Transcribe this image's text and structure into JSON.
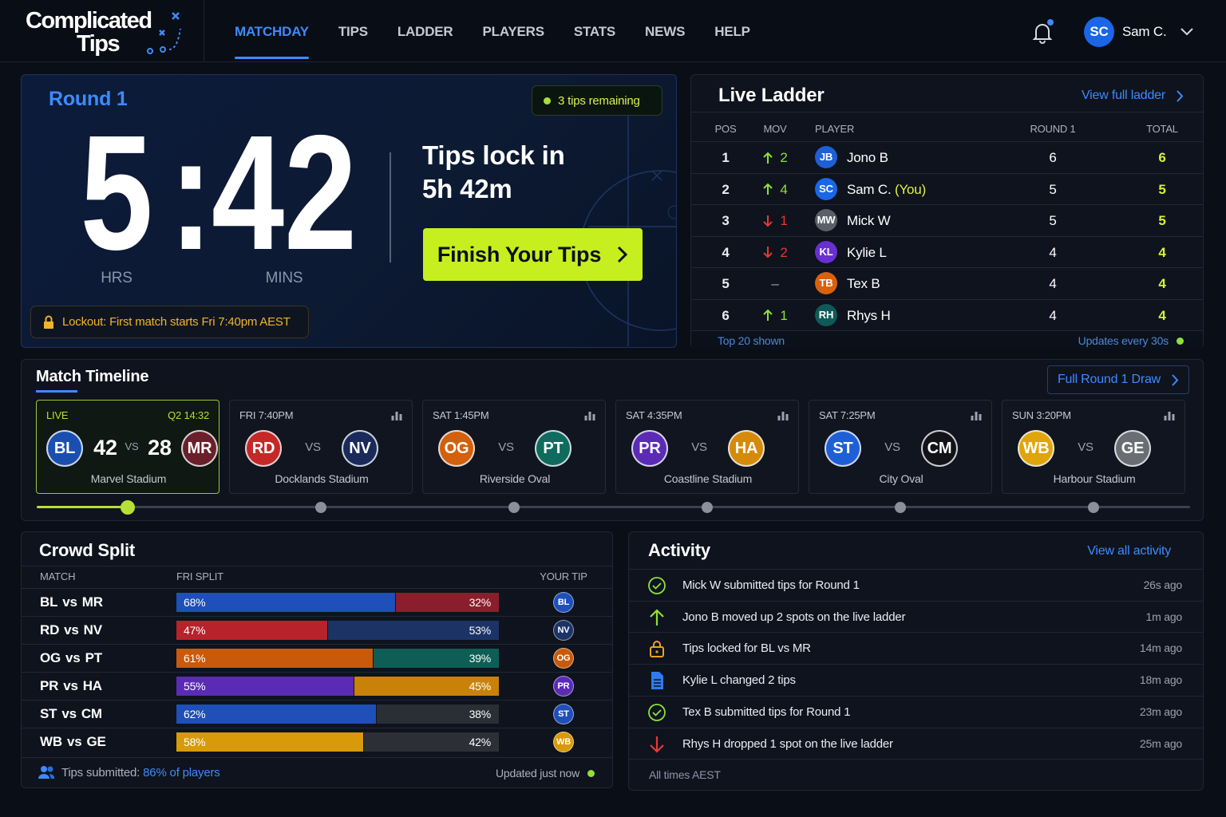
{
  "nav": {
    "logo_line1": "Complicated",
    "logo_line2": "Tips",
    "links": [
      "MATCHDAY",
      "TIPS",
      "LADDER",
      "PLAYERS",
      "STATS",
      "NEWS",
      "HELP"
    ],
    "active_link": 0,
    "user_initials": "SC",
    "user_name": "Sam C."
  },
  "countdown": {
    "round": "Round 1",
    "tips_remaining": "3 tips remaining",
    "hours": 5,
    "separator": ":",
    "minutes": 42,
    "hours_label": "HRS",
    "minutes_label": "MINS",
    "lock_title": "Tips lock in",
    "lock_time": "5h 42m",
    "cta": "Finish Your Tips",
    "lockout": "Lockout: First match starts Fri 7:40pm AEST"
  },
  "ladder": {
    "title": "Live Ladder",
    "view_link": "View full ladder",
    "columns": [
      "POS",
      "MOV",
      "PLAYER",
      "ROUND 1",
      "TOTAL"
    ],
    "rows": [
      {
        "pos": 1,
        "dir": "up",
        "mov": 2,
        "initials": "JB",
        "color": "#1f5fd6",
        "name": "Jono B",
        "round": 6,
        "total": 6
      },
      {
        "pos": 2,
        "dir": "up",
        "mov": 4,
        "initials": "SC",
        "color": "#1a66e6",
        "name": "Sam C.",
        "you": "(You)",
        "round": 5,
        "total": 5
      },
      {
        "pos": 3,
        "dir": "down",
        "mov": 1,
        "initials": "MW",
        "color": "#5a5f68",
        "name": "Mick W",
        "round": 5,
        "total": 5
      },
      {
        "pos": 4,
        "dir": "down",
        "mov": 2,
        "initials": "KL",
        "color": "#6a2fd0",
        "name": "Kylie L",
        "round": 4,
        "total": 4
      },
      {
        "pos": 5,
        "dir": "flat",
        "mov": "–",
        "initials": "TB",
        "color": "#d8610c",
        "name": "Tex B",
        "round": 4,
        "total": 4
      },
      {
        "pos": 6,
        "dir": "up",
        "mov": 1,
        "initials": "RH",
        "color": "#0f5a58",
        "name": "Rhys H",
        "round": 4,
        "total": 4
      }
    ],
    "footer_left": "Top 20 shown",
    "footer_right": "Updates every 30s"
  },
  "timeline": {
    "title": "Match Timeline",
    "draw_link": "Full Round 1 Draw",
    "vs": "VS",
    "matches": [
      {
        "status": "LIVE",
        "clock": "Q2 14:32",
        "home": "BL",
        "home_color": "#1a4fb0",
        "home_score": 42,
        "away": "MR",
        "away_color": "#6b1f2a",
        "away_score": 28,
        "venue": "Marvel Stadium"
      },
      {
        "time": "FRI 7:40PM",
        "home": "RD",
        "home_color": "#c62828",
        "away": "NV",
        "away_color": "#1a2a5a",
        "venue": "Docklands Stadium"
      },
      {
        "time": "SAT 1:45PM",
        "home": "OG",
        "home_color": "#d2600c",
        "away": "PT",
        "away_color": "#0f6b5e",
        "venue": "Riverside Oval"
      },
      {
        "time": "SAT 4:35PM",
        "home": "PR",
        "home_color": "#5b2bb5",
        "away": "HA",
        "away_color": "#d68a0a",
        "venue": "Coastline Stadium"
      },
      {
        "time": "SAT 7:25PM",
        "home": "ST",
        "home_color": "#1f5fd6",
        "away": "CM",
        "away_color": "#111317",
        "venue": "City Oval"
      },
      {
        "time": "SUN 3:20PM",
        "home": "WB",
        "home_color": "#e0a50a",
        "away": "GE",
        "away_color": "#6a6e73",
        "venue": "Harbour Stadium"
      }
    ]
  },
  "crowd_split": {
    "title": "Crowd Split",
    "columns": [
      "MATCH",
      "FRI SPLIT",
      "YOUR TIP"
    ],
    "vs": "vs",
    "rows": [
      {
        "home": "BL",
        "away": "MR",
        "home_pct": 68,
        "home_label": "68%",
        "away_pct": 32,
        "away_label": "32%",
        "tip": "BL",
        "home_color": "#1f4fb8",
        "away_color": "#8a1f2b"
      },
      {
        "home": "RD",
        "away": "NV",
        "home_pct": 47,
        "home_label": "47%",
        "away_pct": 53,
        "away_label": "53%",
        "tip": "NV",
        "home_color": "#b8222a",
        "away_color": "#1c3366"
      },
      {
        "home": "OG",
        "away": "PT",
        "home_pct": 61,
        "home_label": "61%",
        "away_pct": 39,
        "away_label": "39%",
        "tip": "OG",
        "home_color": "#c95a0c",
        "away_color": "#0f5e56"
      },
      {
        "home": "PR",
        "away": "HA",
        "home_pct": 55,
        "home_label": "55%",
        "away_pct": 45,
        "away_label": "45%",
        "tip": "PR",
        "home_color": "#5b2bb5",
        "away_color": "#c98208"
      },
      {
        "home": "ST",
        "away": "CM",
        "home_pct": 62,
        "home_label": "62%",
        "away_pct": 38,
        "away_label": "38%",
        "tip": "ST",
        "home_color": "#1f4fb8",
        "away_color": "#2a2e35"
      },
      {
        "home": "WB",
        "away": "GE",
        "home_pct": 58,
        "home_label": "58%",
        "away_pct": 42,
        "away_label": "42%",
        "tip": "WB",
        "home_color": "#d89a0a",
        "away_color": "#2c3036"
      }
    ],
    "tips_prefix": "Tips submitted:",
    "tips_link": "86% of players",
    "updated": "Updated just now"
  },
  "activity": {
    "title": "Activity",
    "view_link": "View all activity",
    "items": [
      {
        "icon": "check",
        "text": "Mick W submitted tips for Round 1",
        "time": "26s ago"
      },
      {
        "icon": "up",
        "text": "Jono B moved up 2 spots on the live ladder",
        "time": "1m ago"
      },
      {
        "icon": "lock",
        "text": "Tips locked for BL vs MR",
        "time": "14m ago"
      },
      {
        "icon": "doc",
        "text": "Kylie L changed 2 tips",
        "time": "18m ago"
      },
      {
        "icon": "check",
        "text": "Tex B submitted tips for Round 1",
        "time": "23m ago"
      },
      {
        "icon": "down",
        "text": "Rhys H dropped 1 spot on the live ladder",
        "time": "25m ago"
      }
    ],
    "footer": "All times AEST"
  }
}
